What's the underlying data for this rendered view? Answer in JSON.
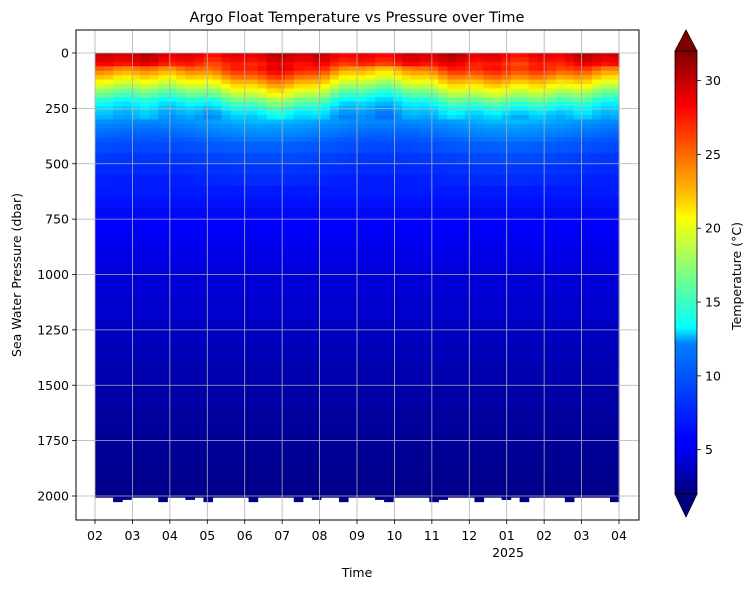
{
  "chart_data": {
    "type": "heatmap",
    "title": "Argo Float Temperature vs Pressure over Time",
    "xlabel": "Time",
    "ylabel": "Sea Water Pressure (dbar)",
    "x_ticks": [
      "02",
      "03",
      "04",
      "05",
      "06",
      "07",
      "08",
      "09",
      "10",
      "11",
      "12",
      "01",
      "02",
      "03",
      "04"
    ],
    "x_year_label": "2025",
    "x_range": [
      "2024-02-01",
      "2025-04-01"
    ],
    "y_ticks": [
      0,
      250,
      500,
      750,
      1000,
      1250,
      1500,
      1750,
      2000
    ],
    "y_range": [
      2000,
      0
    ],
    "y_inverted": true,
    "grid": true,
    "colorbar": {
      "label": "Temperature (°C)",
      "ticks": [
        5,
        10,
        15,
        20,
        25,
        30
      ],
      "range": [
        2,
        32
      ],
      "colormap": "jet",
      "extend": "both"
    },
    "temperature_profile": {
      "pressure_dbar": [
        0,
        20,
        50,
        80,
        110,
        150,
        200,
        250,
        300,
        400,
        500,
        600,
        800,
        1000,
        1300,
        1600,
        2000
      ],
      "temperature_c": [
        29.5,
        29,
        27.5,
        25.5,
        23,
        20,
        16,
        12.5,
        10.5,
        8.5,
        7.3,
        6.6,
        5.6,
        4.7,
        3.8,
        3.0,
        2.3
      ]
    }
  }
}
